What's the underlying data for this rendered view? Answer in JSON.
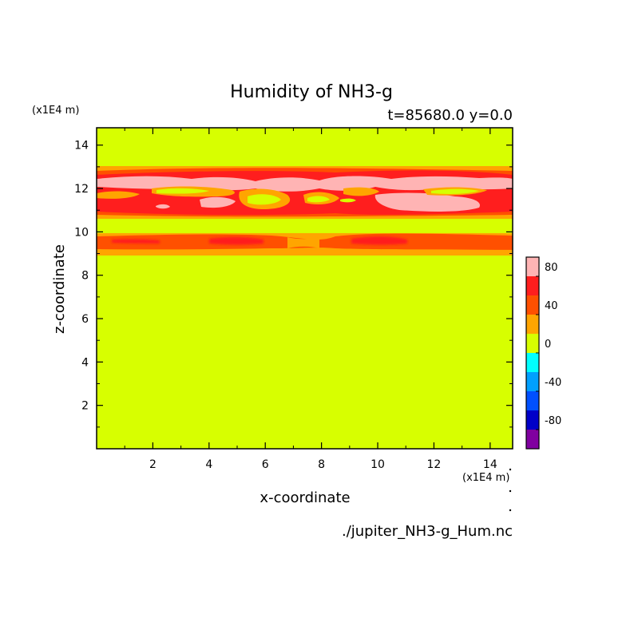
{
  "chart_data": {
    "type": "heatmap",
    "title": "Humidity of NH3-g",
    "subtitle": "t=85680.0 y=0.0",
    "xlabel": "x-coordinate",
    "ylabel": "z-coordinate",
    "x_unit": "(x1E4 m)",
    "y_unit": "(x1E4 m)",
    "source_file": "./jupiter_NH3-g_Hum.nc",
    "xlim": [
      0,
      14.8
    ],
    "ylim": [
      0,
      14.8
    ],
    "x_ticks": [
      2,
      4,
      6,
      8,
      10,
      12,
      14
    ],
    "y_ticks": [
      2,
      4,
      6,
      8,
      10,
      12,
      14
    ],
    "colorbar": {
      "levels": [
        -100,
        -80,
        -60,
        -40,
        -20,
        0,
        20,
        40,
        60,
        80,
        100
      ],
      "tick_labels": [
        "-80",
        "-40",
        "0",
        "40",
        "80"
      ],
      "tick_values": [
        -80,
        -40,
        0,
        40,
        80
      ],
      "colors": [
        "#8000a0",
        "#0000c8",
        "#0050ff",
        "#00a0ff",
        "#00ffff",
        "#d7ff00",
        "#ffa500",
        "#ff5000",
        "#ff1e1e",
        "#ffb4b4"
      ]
    },
    "background_level_color": "#d7ff00",
    "layers": [
      {
        "z_range": [
          9.0,
          10.6
        ],
        "description_levels": "20-60"
      },
      {
        "z_range": [
          10.6,
          12.9
        ],
        "description_levels": "0-100"
      }
    ]
  }
}
